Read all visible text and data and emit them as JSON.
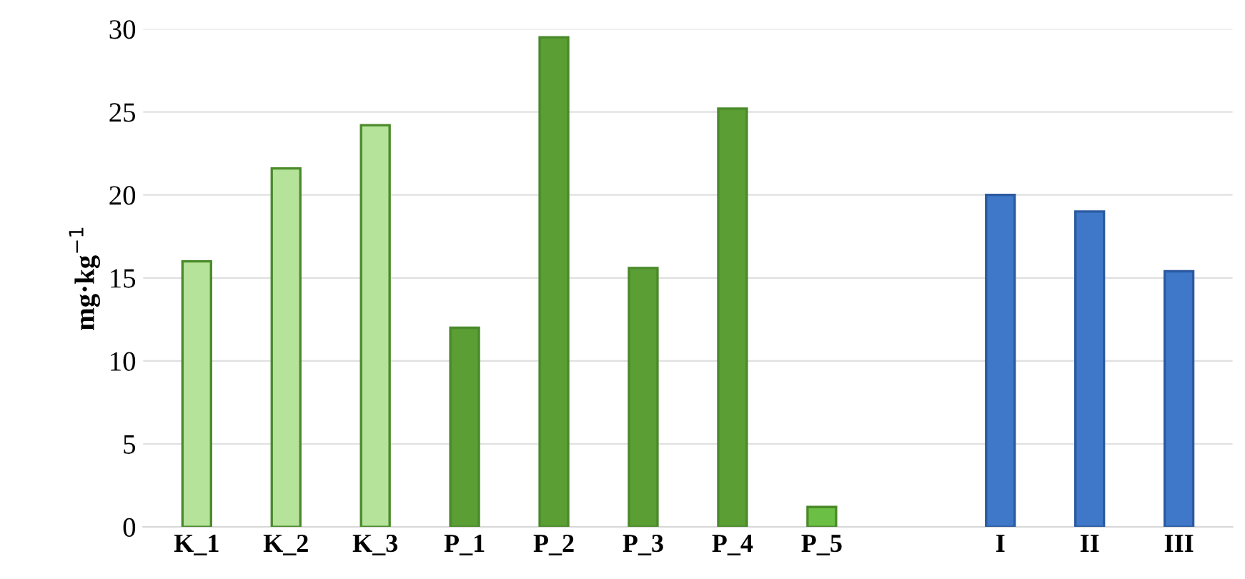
{
  "chart_data": {
    "type": "bar",
    "ylabel": "mg·kg$^{−1}$",
    "categories": [
      "K_1",
      "K_2",
      "K_3",
      "P_1",
      "P_2",
      "P_3",
      "P_4",
      "P_5",
      null,
      "I",
      "II",
      "III"
    ],
    "values": [
      16,
      21.6,
      24.2,
      12,
      29.5,
      15.6,
      25.2,
      1.2,
      null,
      20,
      19,
      15.4
    ],
    "colors": [
      "#b5e39a",
      "#b5e39a",
      "#b5e39a",
      "#5a9e34",
      "#5a9e34",
      "#5a9e34",
      "#5a9e34",
      "#6cbf45",
      null,
      "#3f78c8",
      "#3f78c8",
      "#3f78c8"
    ],
    "ylim": [
      0,
      30
    ],
    "yticks": [
      0,
      5,
      10,
      15,
      20,
      25,
      30
    ],
    "grid": "y"
  }
}
